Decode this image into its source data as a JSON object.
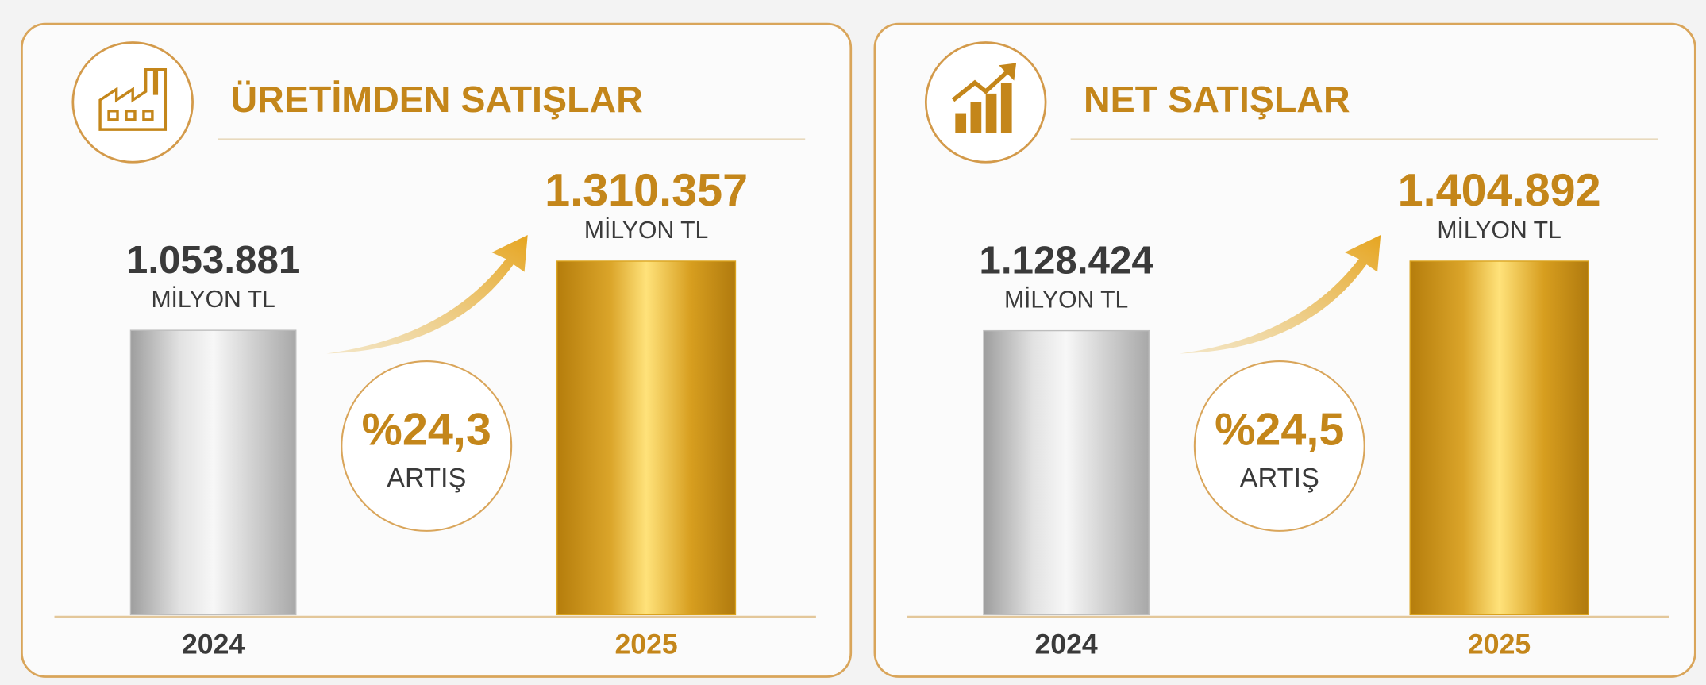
{
  "chart_data": [
    {
      "type": "bar",
      "title": "ÜRETİMDEN SATIŞLAR",
      "icon": "factory",
      "categories": [
        "2024",
        "2025"
      ],
      "values": [
        1053881,
        1310357
      ],
      "value_labels": [
        "1.053.881",
        "1.310.357"
      ],
      "unit": "MİLYON TL",
      "colors": [
        "#bdbdbd",
        "#d9a21e"
      ],
      "annotation": "%24,3",
      "annotation_label": "ARTIŞ"
    },
    {
      "type": "bar",
      "title": "NET SATIŞLAR",
      "icon": "growth",
      "categories": [
        "2024",
        "2025"
      ],
      "values": [
        1128424,
        1404892
      ],
      "value_labels": [
        "1.128.424",
        "1.404.892"
      ],
      "unit": "MİLYON TL",
      "colors": [
        "#bdbdbd",
        "#d9a21e"
      ],
      "annotation": "%24,5",
      "annotation_label": "ARTIŞ"
    }
  ]
}
